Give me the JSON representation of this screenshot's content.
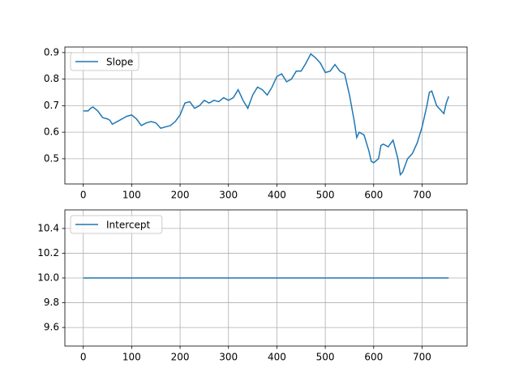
{
  "chart_data": [
    {
      "type": "line",
      "x": [
        0,
        10,
        15,
        20,
        30,
        40,
        50,
        55,
        60,
        70,
        80,
        90,
        100,
        110,
        120,
        130,
        140,
        150,
        160,
        170,
        180,
        190,
        200,
        210,
        220,
        230,
        240,
        250,
        260,
        270,
        280,
        290,
        300,
        310,
        320,
        330,
        340,
        350,
        360,
        370,
        380,
        390,
        400,
        410,
        420,
        430,
        440,
        450,
        460,
        470,
        480,
        490,
        500,
        510,
        520,
        530,
        540,
        550,
        560,
        565,
        570,
        580,
        590,
        595,
        600,
        610,
        615,
        620,
        630,
        640,
        650,
        655,
        660,
        670,
        680,
        690,
        700,
        710,
        715,
        720,
        730,
        740,
        745,
        750,
        755
      ],
      "series": [
        {
          "name": "Slope",
          "color": "#1f77b4",
          "values": [
            0.68,
            0.68,
            0.69,
            0.695,
            0.68,
            0.655,
            0.65,
            0.645,
            0.63,
            0.64,
            0.65,
            0.66,
            0.665,
            0.65,
            0.625,
            0.635,
            0.64,
            0.635,
            0.615,
            0.62,
            0.625,
            0.64,
            0.665,
            0.71,
            0.715,
            0.69,
            0.7,
            0.72,
            0.71,
            0.72,
            0.715,
            0.73,
            0.72,
            0.73,
            0.76,
            0.72,
            0.69,
            0.74,
            0.77,
            0.76,
            0.74,
            0.77,
            0.81,
            0.82,
            0.79,
            0.8,
            0.83,
            0.83,
            0.86,
            0.895,
            0.88,
            0.86,
            0.825,
            0.83,
            0.855,
            0.83,
            0.82,
            0.74,
            0.64,
            0.58,
            0.6,
            0.59,
            0.53,
            0.49,
            0.485,
            0.5,
            0.55,
            0.555,
            0.545,
            0.57,
            0.5,
            0.44,
            0.45,
            0.5,
            0.52,
            0.56,
            0.62,
            0.7,
            0.75,
            0.755,
            0.7,
            0.68,
            0.67,
            0.71,
            0.735
          ]
        }
      ],
      "xlim": [
        -38,
        793
      ],
      "ylim": [
        0.405,
        0.921
      ],
      "xticks": [
        0,
        100,
        200,
        300,
        400,
        500,
        600,
        700
      ],
      "yticks": [
        0.5,
        0.6,
        0.7,
        0.8,
        0.9
      ],
      "grid": true,
      "legend": "upper left"
    },
    {
      "type": "line",
      "x": [
        0,
        755
      ],
      "series": [
        {
          "name": "Intercept",
          "color": "#1f77b4",
          "values": [
            10,
            10
          ]
        }
      ],
      "xlim": [
        -38,
        793
      ],
      "ylim": [
        9.45,
        10.55
      ],
      "xticks": [
        0,
        100,
        200,
        300,
        400,
        500,
        600,
        700
      ],
      "yticks": [
        9.6,
        9.8,
        {
          "value": 10,
          "label": "10.0"
        },
        10.2,
        10.4
      ],
      "grid": true,
      "legend": "upper left"
    }
  ]
}
